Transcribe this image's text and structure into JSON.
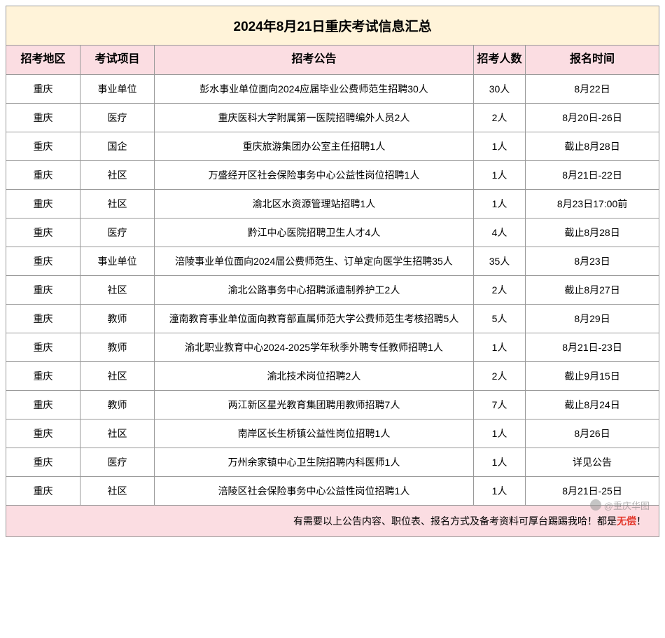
{
  "title": "2024年8月21日重庆考试信息汇总",
  "columns": {
    "region": "招考地区",
    "type": "考试项目",
    "notice": "招考公告",
    "count": "招考人数",
    "time": "报名时间"
  },
  "rows": [
    {
      "region": "重庆",
      "type": "事业单位",
      "notice": "彭水事业单位面向2024应届毕业公费师范生招聘30人",
      "count": "30人",
      "time": "8月22日"
    },
    {
      "region": "重庆",
      "type": "医疗",
      "notice": "重庆医科大学附属第一医院招聘编外人员2人",
      "count": "2人",
      "time": "8月20日-26日"
    },
    {
      "region": "重庆",
      "type": "国企",
      "notice": "重庆旅游集团办公室主任招聘1人",
      "count": "1人",
      "time": "截止8月28日"
    },
    {
      "region": "重庆",
      "type": "社区",
      "notice": "万盛经开区社会保险事务中心公益性岗位招聘1人",
      "count": "1人",
      "time": "8月21日-22日"
    },
    {
      "region": "重庆",
      "type": "社区",
      "notice": "渝北区水资源管理站招聘1人",
      "count": "1人",
      "time": "8月23日17:00前"
    },
    {
      "region": "重庆",
      "type": "医疗",
      "notice": "黔江中心医院招聘卫生人才4人",
      "count": "4人",
      "time": "截止8月28日"
    },
    {
      "region": "重庆",
      "type": "事业单位",
      "notice": "涪陵事业单位面向2024届公费师范生、订单定向医学生招聘35人",
      "count": "35人",
      "time": "8月23日"
    },
    {
      "region": "重庆",
      "type": "社区",
      "notice": "渝北公路事务中心招聘派遣制养护工2人",
      "count": "2人",
      "time": "截止8月27日"
    },
    {
      "region": "重庆",
      "type": "教师",
      "notice": "潼南教育事业单位面向教育部直属师范大学公费师范生考核招聘5人",
      "count": "5人",
      "time": "8月29日"
    },
    {
      "region": "重庆",
      "type": "教师",
      "notice": "渝北职业教育中心2024-2025学年秋季外聘专任教师招聘1人",
      "count": "1人",
      "time": "8月21日-23日"
    },
    {
      "region": "重庆",
      "type": "社区",
      "notice": "渝北技术岗位招聘2人",
      "count": "2人",
      "time": "截止9月15日"
    },
    {
      "region": "重庆",
      "type": "教师",
      "notice": "两江新区星光教育集团聘用教师招聘7人",
      "count": "7人",
      "time": "截止8月24日"
    },
    {
      "region": "重庆",
      "type": "社区",
      "notice": "南岸区长生桥镇公益性岗位招聘1人",
      "count": "1人",
      "time": "8月26日"
    },
    {
      "region": "重庆",
      "type": "医疗",
      "notice": "万州余家镇中心卫生院招聘内科医师1人",
      "count": "1人",
      "time": "详见公告"
    },
    {
      "region": "重庆",
      "type": "社区",
      "notice": "涪陵区社会保险事务中心公益性岗位招聘1人",
      "count": "1人",
      "time": "8月21日-25日"
    }
  ],
  "footer": {
    "pre": "有需要以上公告内容、职位表、报名方式及备考资料可厚台踢踢我哈！都是",
    "emph": "无偿",
    "post": "！"
  },
  "watermark": "@重庆华图",
  "colors": {
    "title_bg": "#fff3d9",
    "header_bg": "#fbdde2",
    "footer_bg": "#fbdde2",
    "border": "#999999",
    "emph": "#e3362a"
  }
}
